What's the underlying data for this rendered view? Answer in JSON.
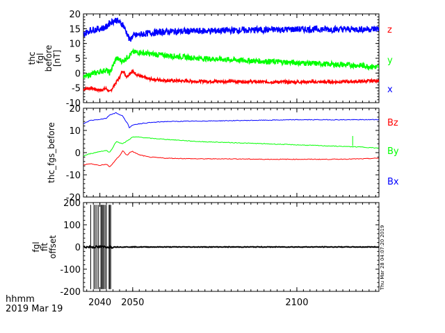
{
  "footer": {
    "line1": "hhmm",
    "line2": "2019 Mar 19"
  },
  "timestamp": "Thu Mar 28 04:07:20 2019",
  "chart_data": [
    {
      "type": "line",
      "ylabel_lines": [
        "thc",
        "fgl",
        "before",
        "[nT]"
      ],
      "ylim": [
        -10,
        20
      ],
      "yticks": [
        -10,
        -5,
        0,
        5,
        10,
        15,
        20
      ],
      "xlim": [
        2035,
        2125
      ],
      "x": [
        2035,
        2037,
        2040,
        2042,
        2043,
        2045,
        2046,
        2047,
        2048,
        2048.5,
        2049,
        2050,
        2052,
        2055,
        2060,
        2070,
        2080,
        2090,
        2100,
        2110,
        2120,
        2125
      ],
      "series": [
        {
          "name": "z",
          "color": "#ff0000",
          "values": [
            -5.5,
            -5,
            -5.8,
            -5.2,
            -6.5,
            -3,
            -1.5,
            1,
            -1,
            -1,
            0,
            0.5,
            -1,
            -2,
            -2.5,
            -2.8,
            -2.8,
            -3,
            -3,
            -3,
            -2.8,
            -2.5
          ]
        },
        {
          "name": "y",
          "color": "#00ff00",
          "values": [
            -1.5,
            -0.5,
            0.5,
            1,
            0,
            5,
            4.5,
            4,
            5,
            5.5,
            6,
            7,
            7,
            6.5,
            6,
            5,
            4.5,
            4,
            3.5,
            3,
            2.5,
            2
          ]
        },
        {
          "name": "x",
          "color": "#0000ff",
          "values": [
            13,
            14.5,
            15,
            15.5,
            17,
            18,
            17,
            16.5,
            14,
            13,
            11,
            12.5,
            13,
            13.5,
            14,
            14.2,
            14.4,
            14.6,
            14.8,
            14.8,
            14.8,
            14.9
          ]
        }
      ],
      "legend": [
        "z",
        "y",
        "x"
      ]
    },
    {
      "type": "line",
      "ylabel": "thc_fgs_before",
      "ylim": [
        -20,
        20
      ],
      "yticks": [
        -20,
        -10,
        0,
        10,
        20
      ],
      "xlim": [
        2035,
        2125
      ],
      "x": [
        2035,
        2037,
        2040,
        2042,
        2043,
        2045,
        2046,
        2047,
        2048,
        2048.5,
        2049,
        2050,
        2052,
        2055,
        2060,
        2070,
        2080,
        2090,
        2100,
        2110,
        2120,
        2125
      ],
      "series": [
        {
          "name": "Bz",
          "color": "#ff0000",
          "values": [
            -5.5,
            -5,
            -5.8,
            -5.2,
            -6.5,
            -3,
            -1.5,
            1,
            -1,
            -1,
            0,
            0.5,
            -1,
            -2,
            -2.5,
            -2.8,
            -2.8,
            -3,
            -3,
            -3,
            -2.8,
            -2.5
          ]
        },
        {
          "name": "By",
          "color": "#00ff00",
          "values": [
            -1.5,
            -0.5,
            0.5,
            1,
            0,
            5,
            4.5,
            4,
            5,
            5.5,
            6,
            7,
            7,
            6.5,
            6,
            5,
            4.5,
            4,
            3.5,
            3,
            2.5,
            2
          ]
        },
        {
          "name": "Bx",
          "color": "#0000ff",
          "values": [
            13,
            14.5,
            15,
            15.5,
            17,
            18,
            17,
            16.5,
            14,
            13,
            11,
            12.5,
            13,
            13.5,
            14,
            14.2,
            14.4,
            14.6,
            14.8,
            14.8,
            14.8,
            14.9
          ]
        }
      ],
      "legend": [
        "Bz",
        "By",
        "Bx"
      ]
    },
    {
      "type": "line",
      "ylabel_lines": [
        "fgl",
        "fit",
        "offset"
      ],
      "ylim": [
        -200,
        200
      ],
      "yticks": [
        -200,
        -100,
        0,
        100,
        200
      ],
      "xlim": [
        2035,
        2125
      ],
      "xticks": [
        2040,
        2050,
        2100
      ],
      "baseline": 0,
      "series": [
        {
          "name": "offset",
          "color": "#000000",
          "spikes": [
            2037.2,
            2038.2,
            2038.6,
            2039.1,
            2039.6,
            2040.3,
            2040.6,
            2040.9,
            2041.2,
            2041.6,
            2042.0,
            2042.8,
            2043.0,
            2043.3
          ],
          "spike_top": [
            190,
            190,
            190,
            190,
            190,
            190,
            190,
            190,
            190,
            190,
            190,
            190,
            190,
            190
          ],
          "spike_bottom": [
            -190,
            -190,
            -190,
            -190,
            -190,
            -190,
            -190,
            -190,
            -190,
            -190,
            -190,
            -190,
            -190,
            -190
          ]
        }
      ]
    }
  ]
}
